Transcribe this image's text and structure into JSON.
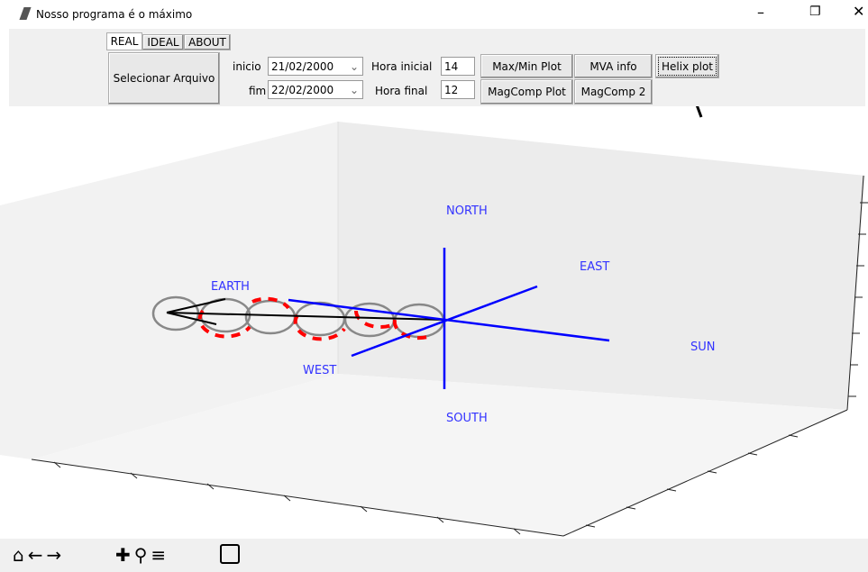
{
  "window": {
    "title": "Nosso programa é o máximo"
  },
  "tabs": [
    "REAL",
    "IDEAL",
    "ABOUT"
  ],
  "toolbar": {
    "select_file": "Selecionar Arquivo",
    "start_label": "inicio",
    "start_date": "21/02/2000",
    "end_label": "fim",
    "end_date": "22/02/2000",
    "start_hour_label": "Hora inicial",
    "start_hour": 14,
    "end_hour_label": "Hora final",
    "end_hour": 12,
    "buttons": [
      "Max/Min Plot",
      "MVA info",
      "Helix plot",
      "MagComp Plot",
      "MagComp 2"
    ]
  },
  "plot": {
    "north": "NORTH",
    "east": "EAST",
    "sun": "SUN",
    "west": "WEST",
    "south": "SOUTH",
    "earth": "EARTH"
  }
}
